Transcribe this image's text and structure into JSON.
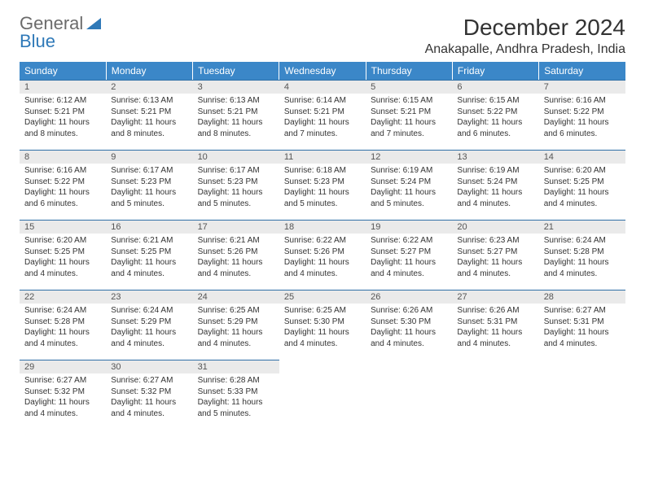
{
  "brand": {
    "part1": "General",
    "part2": "Blue"
  },
  "colors": {
    "header_bg": "#3b87c8",
    "header_text": "#ffffff",
    "daynum_bg": "#eaeaea",
    "daynum_border": "#2f6fa6",
    "text": "#333333",
    "logo_gray": "#6b6b6b",
    "logo_blue": "#2f79b8"
  },
  "title": "December 2024",
  "location": "Anakapalle, Andhra Pradesh, India",
  "weekdays": [
    "Sunday",
    "Monday",
    "Tuesday",
    "Wednesday",
    "Thursday",
    "Friday",
    "Saturday"
  ],
  "days": [
    {
      "n": "1",
      "sr": "6:12 AM",
      "ss": "5:21 PM",
      "dl": "11 hours and 8 minutes."
    },
    {
      "n": "2",
      "sr": "6:13 AM",
      "ss": "5:21 PM",
      "dl": "11 hours and 8 minutes."
    },
    {
      "n": "3",
      "sr": "6:13 AM",
      "ss": "5:21 PM",
      "dl": "11 hours and 8 minutes."
    },
    {
      "n": "4",
      "sr": "6:14 AM",
      "ss": "5:21 PM",
      "dl": "11 hours and 7 minutes."
    },
    {
      "n": "5",
      "sr": "6:15 AM",
      "ss": "5:21 PM",
      "dl": "11 hours and 7 minutes."
    },
    {
      "n": "6",
      "sr": "6:15 AM",
      "ss": "5:22 PM",
      "dl": "11 hours and 6 minutes."
    },
    {
      "n": "7",
      "sr": "6:16 AM",
      "ss": "5:22 PM",
      "dl": "11 hours and 6 minutes."
    },
    {
      "n": "8",
      "sr": "6:16 AM",
      "ss": "5:22 PM",
      "dl": "11 hours and 6 minutes."
    },
    {
      "n": "9",
      "sr": "6:17 AM",
      "ss": "5:23 PM",
      "dl": "11 hours and 5 minutes."
    },
    {
      "n": "10",
      "sr": "6:17 AM",
      "ss": "5:23 PM",
      "dl": "11 hours and 5 minutes."
    },
    {
      "n": "11",
      "sr": "6:18 AM",
      "ss": "5:23 PM",
      "dl": "11 hours and 5 minutes."
    },
    {
      "n": "12",
      "sr": "6:19 AM",
      "ss": "5:24 PM",
      "dl": "11 hours and 5 minutes."
    },
    {
      "n": "13",
      "sr": "6:19 AM",
      "ss": "5:24 PM",
      "dl": "11 hours and 4 minutes."
    },
    {
      "n": "14",
      "sr": "6:20 AM",
      "ss": "5:25 PM",
      "dl": "11 hours and 4 minutes."
    },
    {
      "n": "15",
      "sr": "6:20 AM",
      "ss": "5:25 PM",
      "dl": "11 hours and 4 minutes."
    },
    {
      "n": "16",
      "sr": "6:21 AM",
      "ss": "5:25 PM",
      "dl": "11 hours and 4 minutes."
    },
    {
      "n": "17",
      "sr": "6:21 AM",
      "ss": "5:26 PM",
      "dl": "11 hours and 4 minutes."
    },
    {
      "n": "18",
      "sr": "6:22 AM",
      "ss": "5:26 PM",
      "dl": "11 hours and 4 minutes."
    },
    {
      "n": "19",
      "sr": "6:22 AM",
      "ss": "5:27 PM",
      "dl": "11 hours and 4 minutes."
    },
    {
      "n": "20",
      "sr": "6:23 AM",
      "ss": "5:27 PM",
      "dl": "11 hours and 4 minutes."
    },
    {
      "n": "21",
      "sr": "6:24 AM",
      "ss": "5:28 PM",
      "dl": "11 hours and 4 minutes."
    },
    {
      "n": "22",
      "sr": "6:24 AM",
      "ss": "5:28 PM",
      "dl": "11 hours and 4 minutes."
    },
    {
      "n": "23",
      "sr": "6:24 AM",
      "ss": "5:29 PM",
      "dl": "11 hours and 4 minutes."
    },
    {
      "n": "24",
      "sr": "6:25 AM",
      "ss": "5:29 PM",
      "dl": "11 hours and 4 minutes."
    },
    {
      "n": "25",
      "sr": "6:25 AM",
      "ss": "5:30 PM",
      "dl": "11 hours and 4 minutes."
    },
    {
      "n": "26",
      "sr": "6:26 AM",
      "ss": "5:30 PM",
      "dl": "11 hours and 4 minutes."
    },
    {
      "n": "27",
      "sr": "6:26 AM",
      "ss": "5:31 PM",
      "dl": "11 hours and 4 minutes."
    },
    {
      "n": "28",
      "sr": "6:27 AM",
      "ss": "5:31 PM",
      "dl": "11 hours and 4 minutes."
    },
    {
      "n": "29",
      "sr": "6:27 AM",
      "ss": "5:32 PM",
      "dl": "11 hours and 4 minutes."
    },
    {
      "n": "30",
      "sr": "6:27 AM",
      "ss": "5:32 PM",
      "dl": "11 hours and 4 minutes."
    },
    {
      "n": "31",
      "sr": "6:28 AM",
      "ss": "5:33 PM",
      "dl": "11 hours and 5 minutes."
    }
  ],
  "labels": {
    "sunrise": "Sunrise:",
    "sunset": "Sunset:",
    "daylight": "Daylight:"
  },
  "layout": {
    "start_weekday": 0,
    "total_cells": 35
  }
}
